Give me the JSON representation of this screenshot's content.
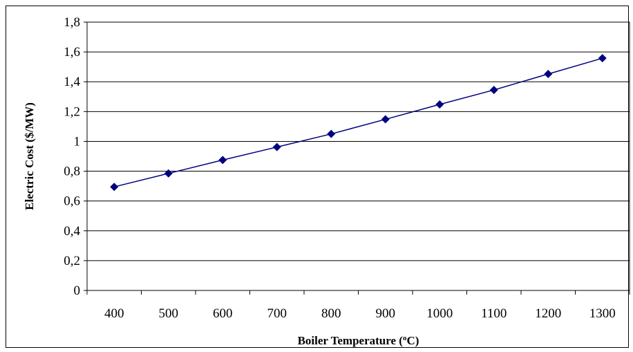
{
  "chart_data": {
    "type": "line",
    "title": "",
    "xlabel": "Boiler Temperature (",
    "xlabel_sup": "o",
    "xlabel_unit": "C)",
    "ylabel": "Electric Cost  ($/MW)",
    "x": [
      400,
      500,
      600,
      700,
      800,
      900,
      1000,
      1100,
      1200,
      1300
    ],
    "x_tick_labels": [
      "400",
      "500",
      "600",
      "700",
      "800",
      "900",
      "1000",
      "1100",
      "1200",
      "1300"
    ],
    "y_ticks": [
      0,
      0.2,
      0.4,
      0.6,
      0.8,
      1,
      1.2,
      1.4,
      1.6,
      1.8
    ],
    "y_tick_labels": [
      "0",
      "0,2",
      "0,4",
      "0,6",
      "0,8",
      "1",
      "1,2",
      "1,4",
      "1,6",
      "1,8"
    ],
    "ylim": [
      0,
      1.8
    ],
    "grid": "horizontal",
    "legend": "none",
    "series": [
      {
        "values": [
          0.695,
          0.785,
          0.875,
          0.962,
          1.05,
          1.148,
          1.248,
          1.345,
          1.452,
          1.558
        ],
        "color": "#000080",
        "marker": "diamond"
      }
    ]
  }
}
